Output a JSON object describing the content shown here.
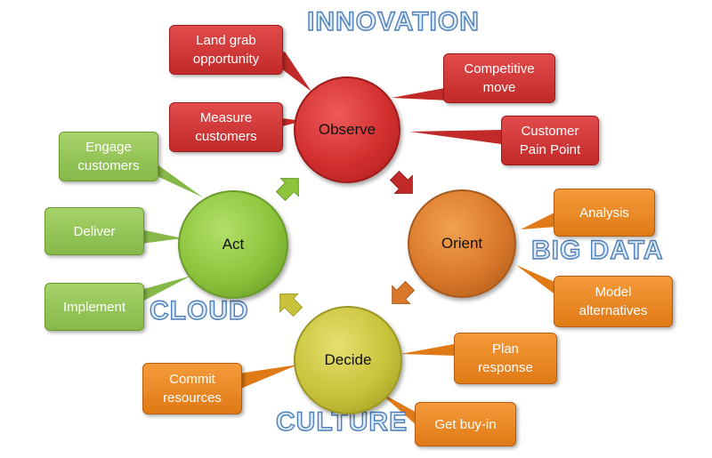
{
  "themes": {
    "innovation": "INNOVATION",
    "big_data": "BIG DATA",
    "cloud": "CLOUD",
    "culture": "CULTURE"
  },
  "stages": {
    "observe": "Observe",
    "orient": "Orient",
    "decide": "Decide",
    "act": "Act"
  },
  "observe_callouts": {
    "land_grab": "Land grab\nopportunity",
    "competitive_move": "Competitive\nmove",
    "measure_customers": "Measure\ncustomers",
    "customer_pain_point": "Customer\nPain Point"
  },
  "orient_callouts": {
    "analysis": "Analysis",
    "model_alternatives": "Model\nalternatives"
  },
  "decide_callouts": {
    "plan_response": "Plan\nresponse",
    "commit_resources": "Commit\nresources",
    "get_buy_in": "Get buy-in"
  },
  "act_callouts": {
    "engage_customers": "Engage\ncustomers",
    "deliver": "Deliver",
    "implement": "Implement"
  },
  "colors": {
    "observe": "#d32f2f",
    "orient": "#d9782a",
    "decide": "#c9c23a",
    "act": "#8cc43c",
    "theme_text": "#4f7fb8"
  }
}
